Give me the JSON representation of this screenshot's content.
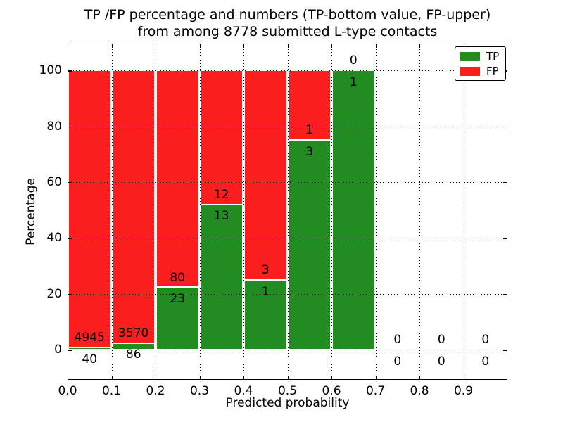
{
  "chart_data": {
    "type": "bar",
    "stacked": true,
    "orientation": "vertical",
    "title_lines": [
      "TP /FP percentage and numbers (TP-bottom value, FP-upper)",
      "from among 8778 submitted L-type contacts"
    ],
    "xlabel": "Predicted probability",
    "ylabel": "Percentage",
    "total_submitted": 8778,
    "xlim": [
      0.0,
      1.0
    ],
    "ylim": [
      -10.8,
      109.6
    ],
    "xtick_values": [
      0.0,
      0.1,
      0.2,
      0.3,
      0.4,
      0.5,
      0.6,
      0.7,
      0.8,
      0.9
    ],
    "xtick_labels": [
      "0.0",
      "0.1",
      "0.2",
      "0.3",
      "0.4",
      "0.5",
      "0.6",
      "0.7",
      "0.8",
      "0.9"
    ],
    "ytick_values": [
      0,
      20,
      40,
      60,
      80,
      100
    ],
    "ytick_labels": [
      "0",
      "20",
      "40",
      "60",
      "80",
      "100"
    ],
    "grid": "dotted",
    "colors": {
      "tp": "#228b22",
      "fp": "#fb1e1e",
      "axis": "#000000",
      "background": "#ffffff"
    },
    "legend": {
      "position": "upper-right",
      "entries": [
        {
          "label": "TP",
          "color": "#228b22"
        },
        {
          "label": "FP",
          "color": "#fb1e1e"
        }
      ]
    },
    "bins": [
      {
        "x_start": 0.0,
        "x_end": 0.1,
        "tp_count": 40,
        "fp_count": 4945,
        "tp_percent": 0.8
      },
      {
        "x_start": 0.1,
        "x_end": 0.2,
        "tp_count": 86,
        "fp_count": 3570,
        "tp_percent": 2.35
      },
      {
        "x_start": 0.2,
        "x_end": 0.3,
        "tp_count": 23,
        "fp_count": 80,
        "tp_percent": 22.33
      },
      {
        "x_start": 0.3,
        "x_end": 0.4,
        "tp_count": 13,
        "fp_count": 12,
        "tp_percent": 52.0
      },
      {
        "x_start": 0.4,
        "x_end": 0.5,
        "tp_count": 1,
        "fp_count": 3,
        "tp_percent": 25.0
      },
      {
        "x_start": 0.5,
        "x_end": 0.6,
        "tp_count": 3,
        "fp_count": 1,
        "tp_percent": 75.0
      },
      {
        "x_start": 0.6,
        "x_end": 0.7,
        "tp_count": 1,
        "fp_count": 0,
        "tp_percent": 100.0
      },
      {
        "x_start": 0.7,
        "x_end": 0.8,
        "tp_count": 0,
        "fp_count": 0,
        "tp_percent": 0
      },
      {
        "x_start": 0.8,
        "x_end": 0.9,
        "tp_count": 0,
        "fp_count": 0,
        "tp_percent": 0
      },
      {
        "x_start": 0.9,
        "x_end": 1.0,
        "tp_count": 0,
        "fp_count": 0,
        "tp_percent": 0
      }
    ]
  }
}
